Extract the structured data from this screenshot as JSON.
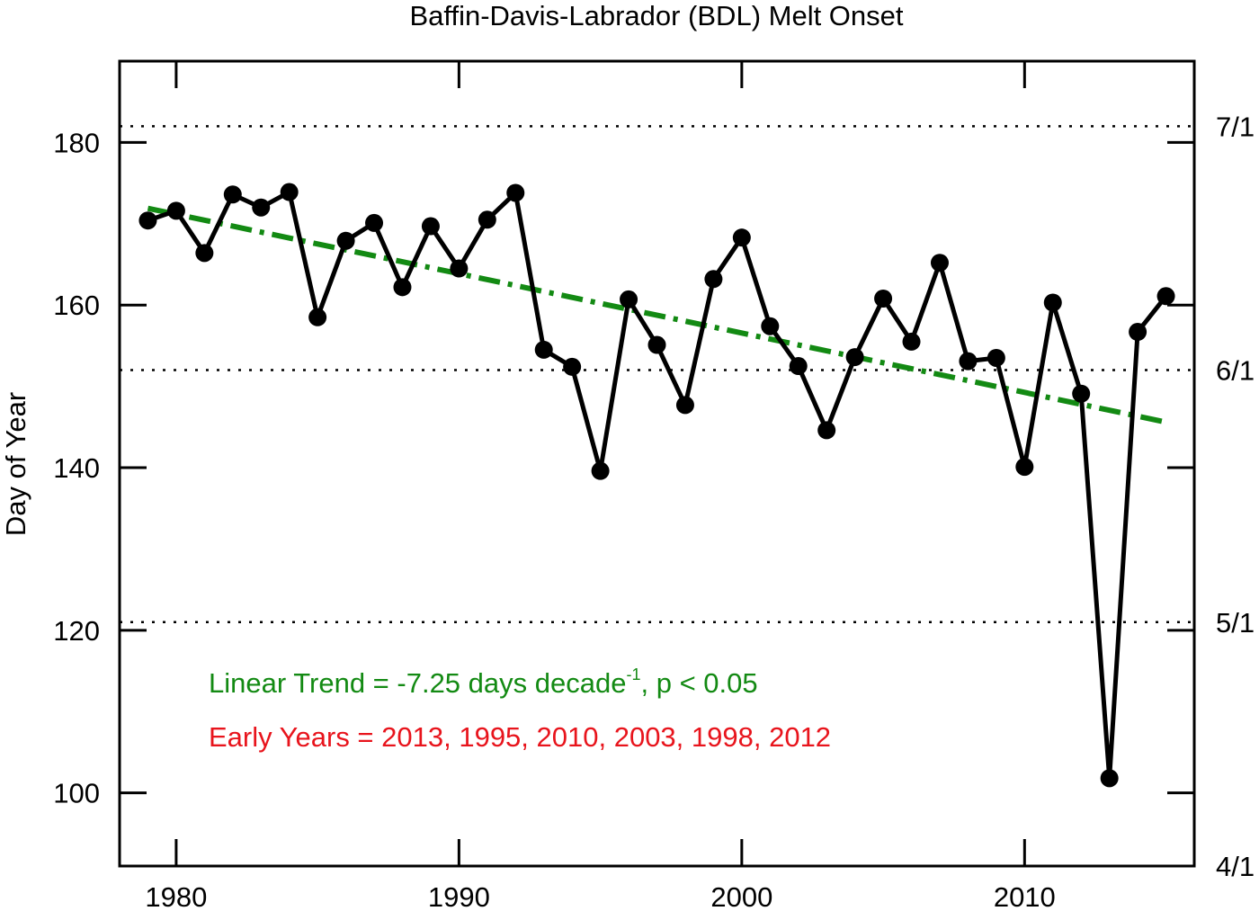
{
  "chart_data": {
    "type": "line",
    "title": "Baffin-Davis-Labrador (BDL) Melt Onset",
    "y_label": "Day of Year",
    "x": [
      1979,
      1980,
      1981,
      1982,
      1983,
      1984,
      1985,
      1986,
      1987,
      1988,
      1989,
      1990,
      1991,
      1992,
      1993,
      1994,
      1995,
      1996,
      1997,
      1998,
      1999,
      2000,
      2001,
      2002,
      2003,
      2004,
      2005,
      2006,
      2007,
      2008,
      2009,
      2010,
      2011,
      2012,
      2013,
      2014,
      2015
    ],
    "series": [
      {
        "color": "#000000",
        "values": [
          170.4,
          171.6,
          166.4,
          173.6,
          172.0,
          173.9,
          158.5,
          167.9,
          170.1,
          162.2,
          169.7,
          164.5,
          170.5,
          173.8,
          154.5,
          152.4,
          139.6,
          160.7,
          155.1,
          147.7,
          163.2,
          168.3,
          157.4,
          152.5,
          144.6,
          153.6,
          160.8,
          155.5,
          165.2,
          153.1,
          153.5,
          140.1,
          160.3,
          149.1,
          101.8,
          156.7,
          161.1
        ]
      }
    ],
    "trend": {
      "color": "#138a13",
      "x": [
        1979,
        2015
      ],
      "values": [
        171.9,
        145.6
      ]
    },
    "reference_lines": [
      {
        "value": 182,
        "label": "7/1"
      },
      {
        "value": 152,
        "label": "6/1"
      },
      {
        "value": 121,
        "label": "5/1"
      },
      {
        "value": 91,
        "label": "4/1"
      }
    ],
    "annotations": [
      {
        "color": "#138a13",
        "text": "Linear Trend = -7.25 days decade",
        "superscript": "-1",
        "suffix": ", p < 0.05"
      },
      {
        "color": "#e8141c",
        "text": "Early Years = 2013, 1995, 2010, 2003, 1998, 2012"
      }
    ],
    "xlim": [
      1978,
      2016
    ],
    "xticks": [
      1980,
      1990,
      2000,
      2010
    ],
    "ylim": [
      91,
      190
    ],
    "yticks": [
      100,
      120,
      140,
      160,
      180
    ]
  }
}
